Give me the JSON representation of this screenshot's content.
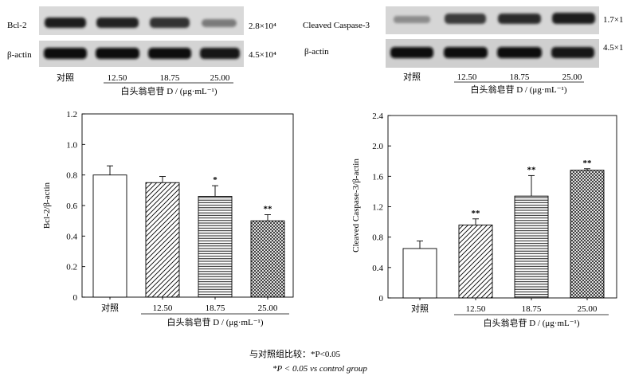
{
  "blots": [
    {
      "rows": [
        {
          "label": "Bcl-2",
          "mw": "2.8×10⁴"
        },
        {
          "label": "β-actin",
          "mw": "4.5×10⁴"
        }
      ],
      "lanes": [
        "对照",
        "12.50",
        "18.75",
        "25.00"
      ],
      "axis_label": "白头翁皂苷 D / (μg·mL⁻¹)"
    },
    {
      "rows": [
        {
          "label": "Cleaved Caspase-3",
          "mw": "1.7×1"
        },
        {
          "label": "β-actin",
          "mw": "4.5×1"
        }
      ],
      "lanes": [
        "对照",
        "12.50",
        "18.75",
        "25.00"
      ],
      "axis_label": "白头翁皂苷 D / (μg·mL⁻¹)"
    }
  ],
  "chart_data": [
    {
      "type": "bar",
      "categories": [
        "对照",
        "12.50",
        "18.75",
        "25.00"
      ],
      "values": [
        0.8,
        0.75,
        0.66,
        0.5
      ],
      "errors": [
        0.06,
        0.04,
        0.07,
        0.04
      ],
      "significance": [
        "",
        "",
        "*",
        "**"
      ],
      "patterns": [
        "none",
        "diag",
        "horiz",
        "cross"
      ],
      "ylabel": "Bcl-2/β-actin",
      "xlabel": "白头翁皂苷 D / (μg·mL⁻¹)",
      "ylim": [
        0,
        1.2
      ],
      "yticks": [
        "0",
        "0.2",
        "0.4",
        "0.6",
        "0.8",
        "1.0",
        "1.2"
      ]
    },
    {
      "type": "bar",
      "categories": [
        "对照",
        "12.50",
        "18.75",
        "25.00"
      ],
      "values": [
        0.65,
        0.96,
        1.34,
        1.68
      ],
      "errors": [
        0.1,
        0.08,
        0.27,
        0.02
      ],
      "significance": [
        "",
        "**",
        "**",
        "**"
      ],
      "patterns": [
        "none",
        "diag",
        "horiz",
        "cross"
      ],
      "ylabel": "Cleaved Caspase-3/β-actin",
      "xlabel": "白头翁皂苷 D / (μg·mL⁻¹)",
      "ylim": [
        0,
        2.4
      ],
      "yticks": [
        "0",
        "0.4",
        "0.8",
        "1.2",
        "1.6",
        "2.0",
        "2.4"
      ]
    }
  ],
  "footnote": {
    "cn": "与对照组比较：*P<0.05",
    "en": "*P < 0.05 vs control group"
  }
}
